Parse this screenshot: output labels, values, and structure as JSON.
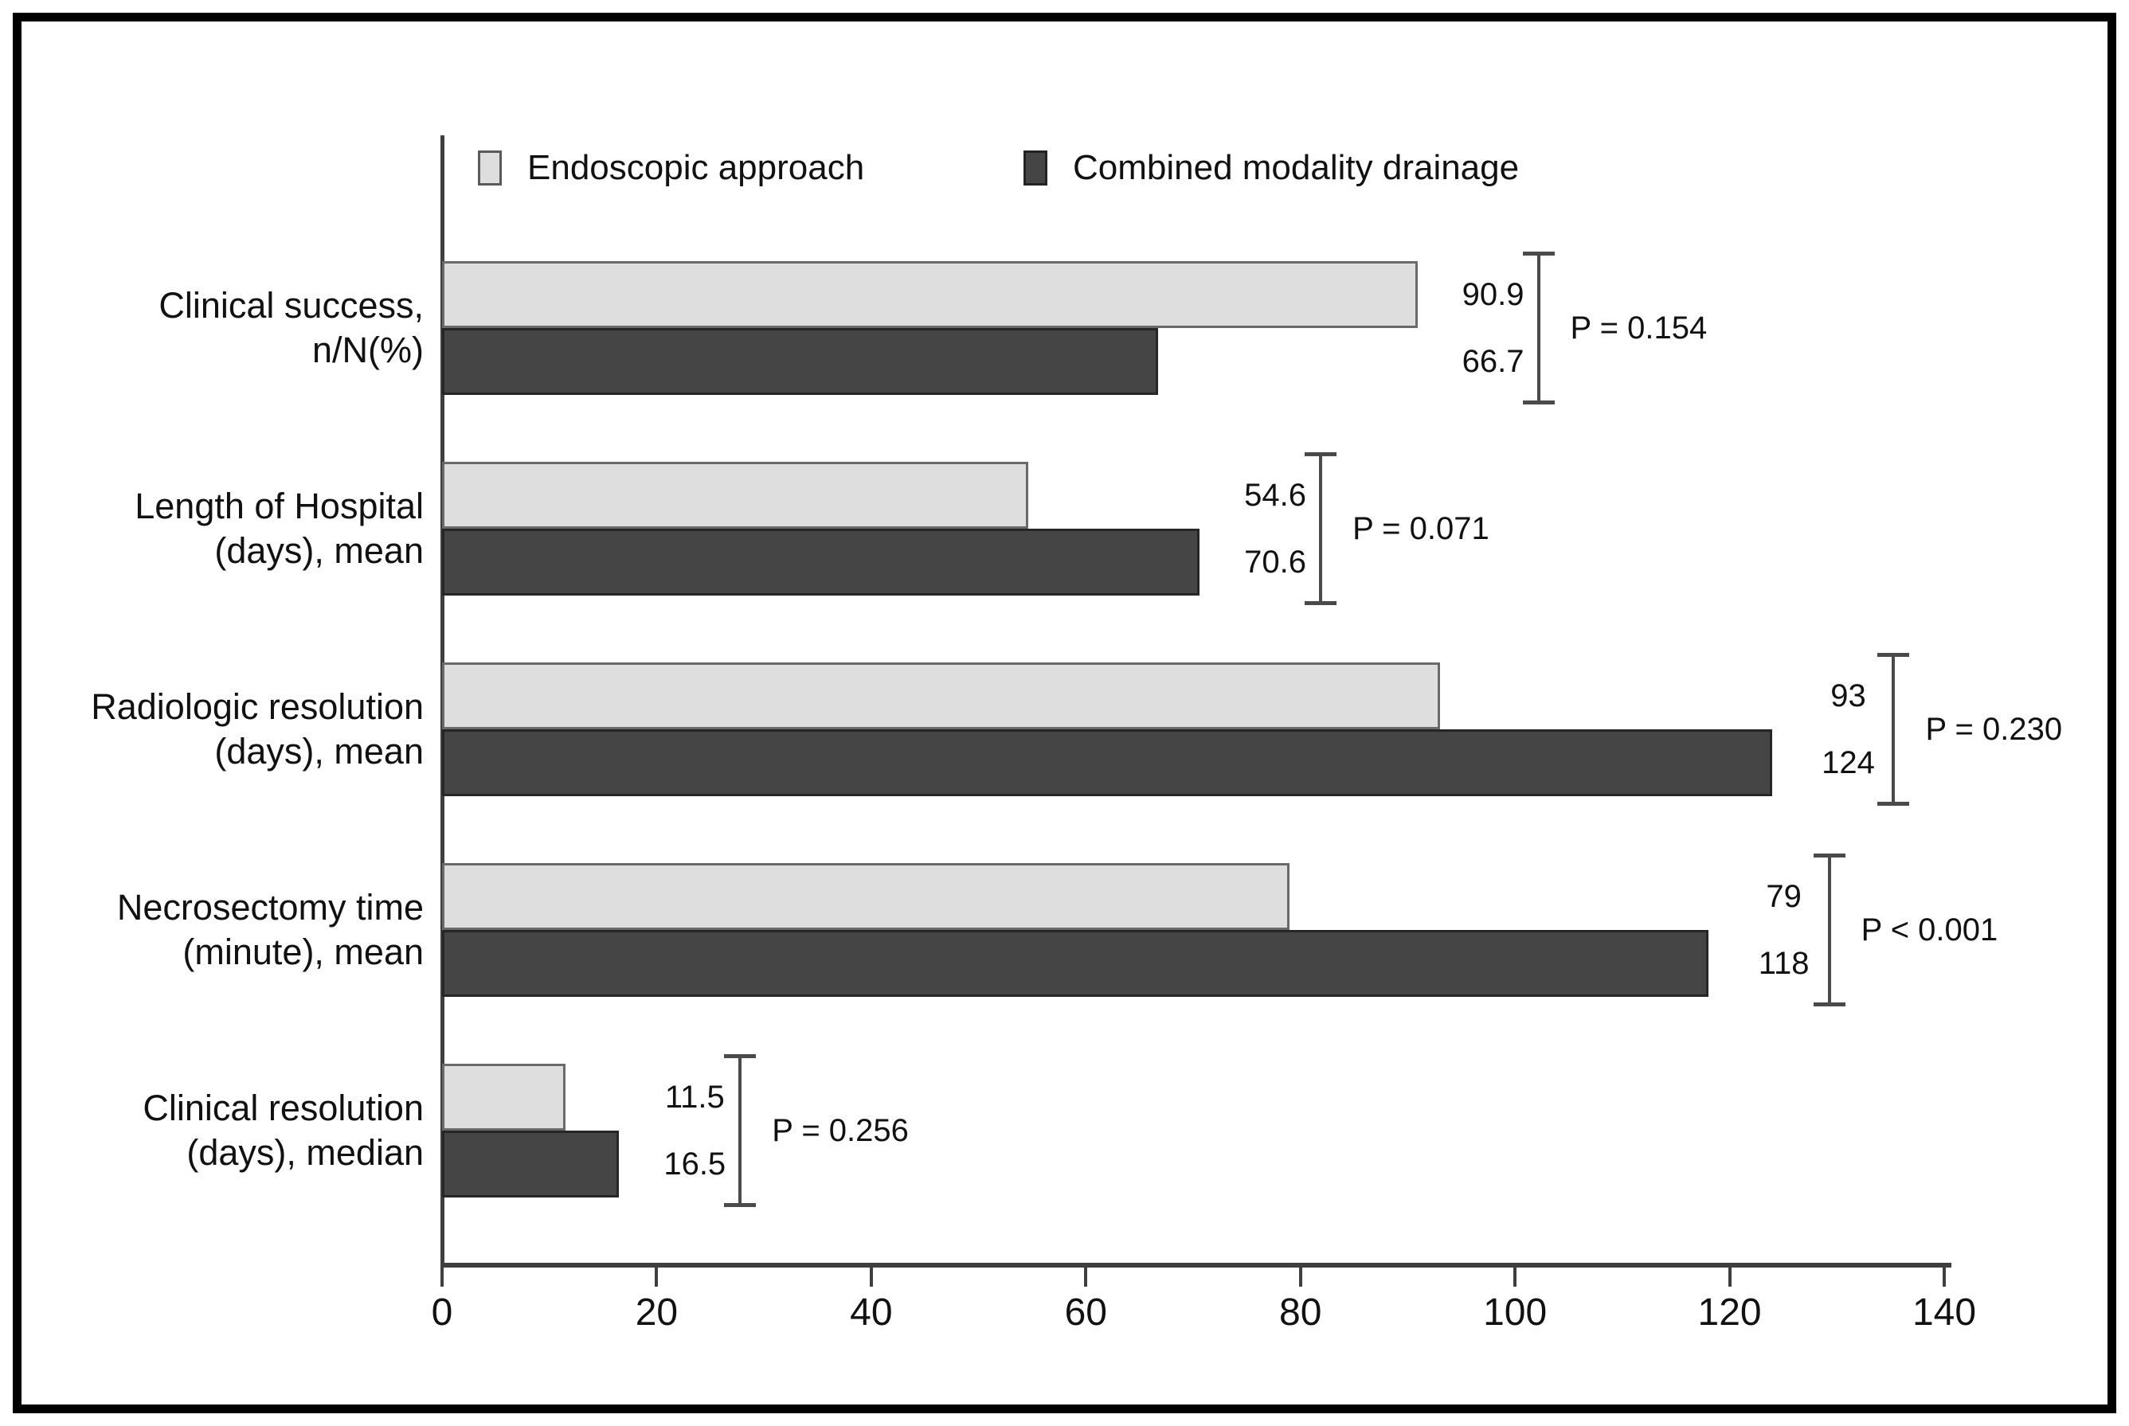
{
  "chart_data": {
    "type": "bar",
    "orientation": "horizontal",
    "title": "",
    "xlabel": "",
    "ylabel": "",
    "xlim": [
      0,
      140
    ],
    "x_ticks": [
      "0",
      "20",
      "40",
      "60",
      "80",
      "100",
      "120",
      "140"
    ],
    "grid": false,
    "legend_position": "top",
    "categories": [
      "Clinical success,\nn/N(%)",
      "Length of Hospital\n(days), mean",
      "Radiologic resolution\n(days), mean",
      "Necrosectomy time\n(minute), mean",
      "Clinical resolution\n(days), median"
    ],
    "series": [
      {
        "name": "Endoscopic approach",
        "color": "#dedede",
        "border": "#6a6a6a",
        "values": [
          90.9,
          54.6,
          93,
          79,
          11.5
        ],
        "value_labels": [
          "90.9",
          "54.6",
          "93",
          "79",
          "11.5"
        ]
      },
      {
        "name": "Combined modality drainage",
        "color": "#454545",
        "border": "#262626",
        "values": [
          66.7,
          70.6,
          124,
          118,
          16.5
        ],
        "value_labels": [
          "66.7",
          "70.6",
          "124",
          "118",
          "16.5"
        ]
      }
    ],
    "p_values": [
      "P = 0.154",
      "P = 0.071",
      "P = 0.230",
      "P < 0.001",
      "P = 0.256"
    ]
  }
}
